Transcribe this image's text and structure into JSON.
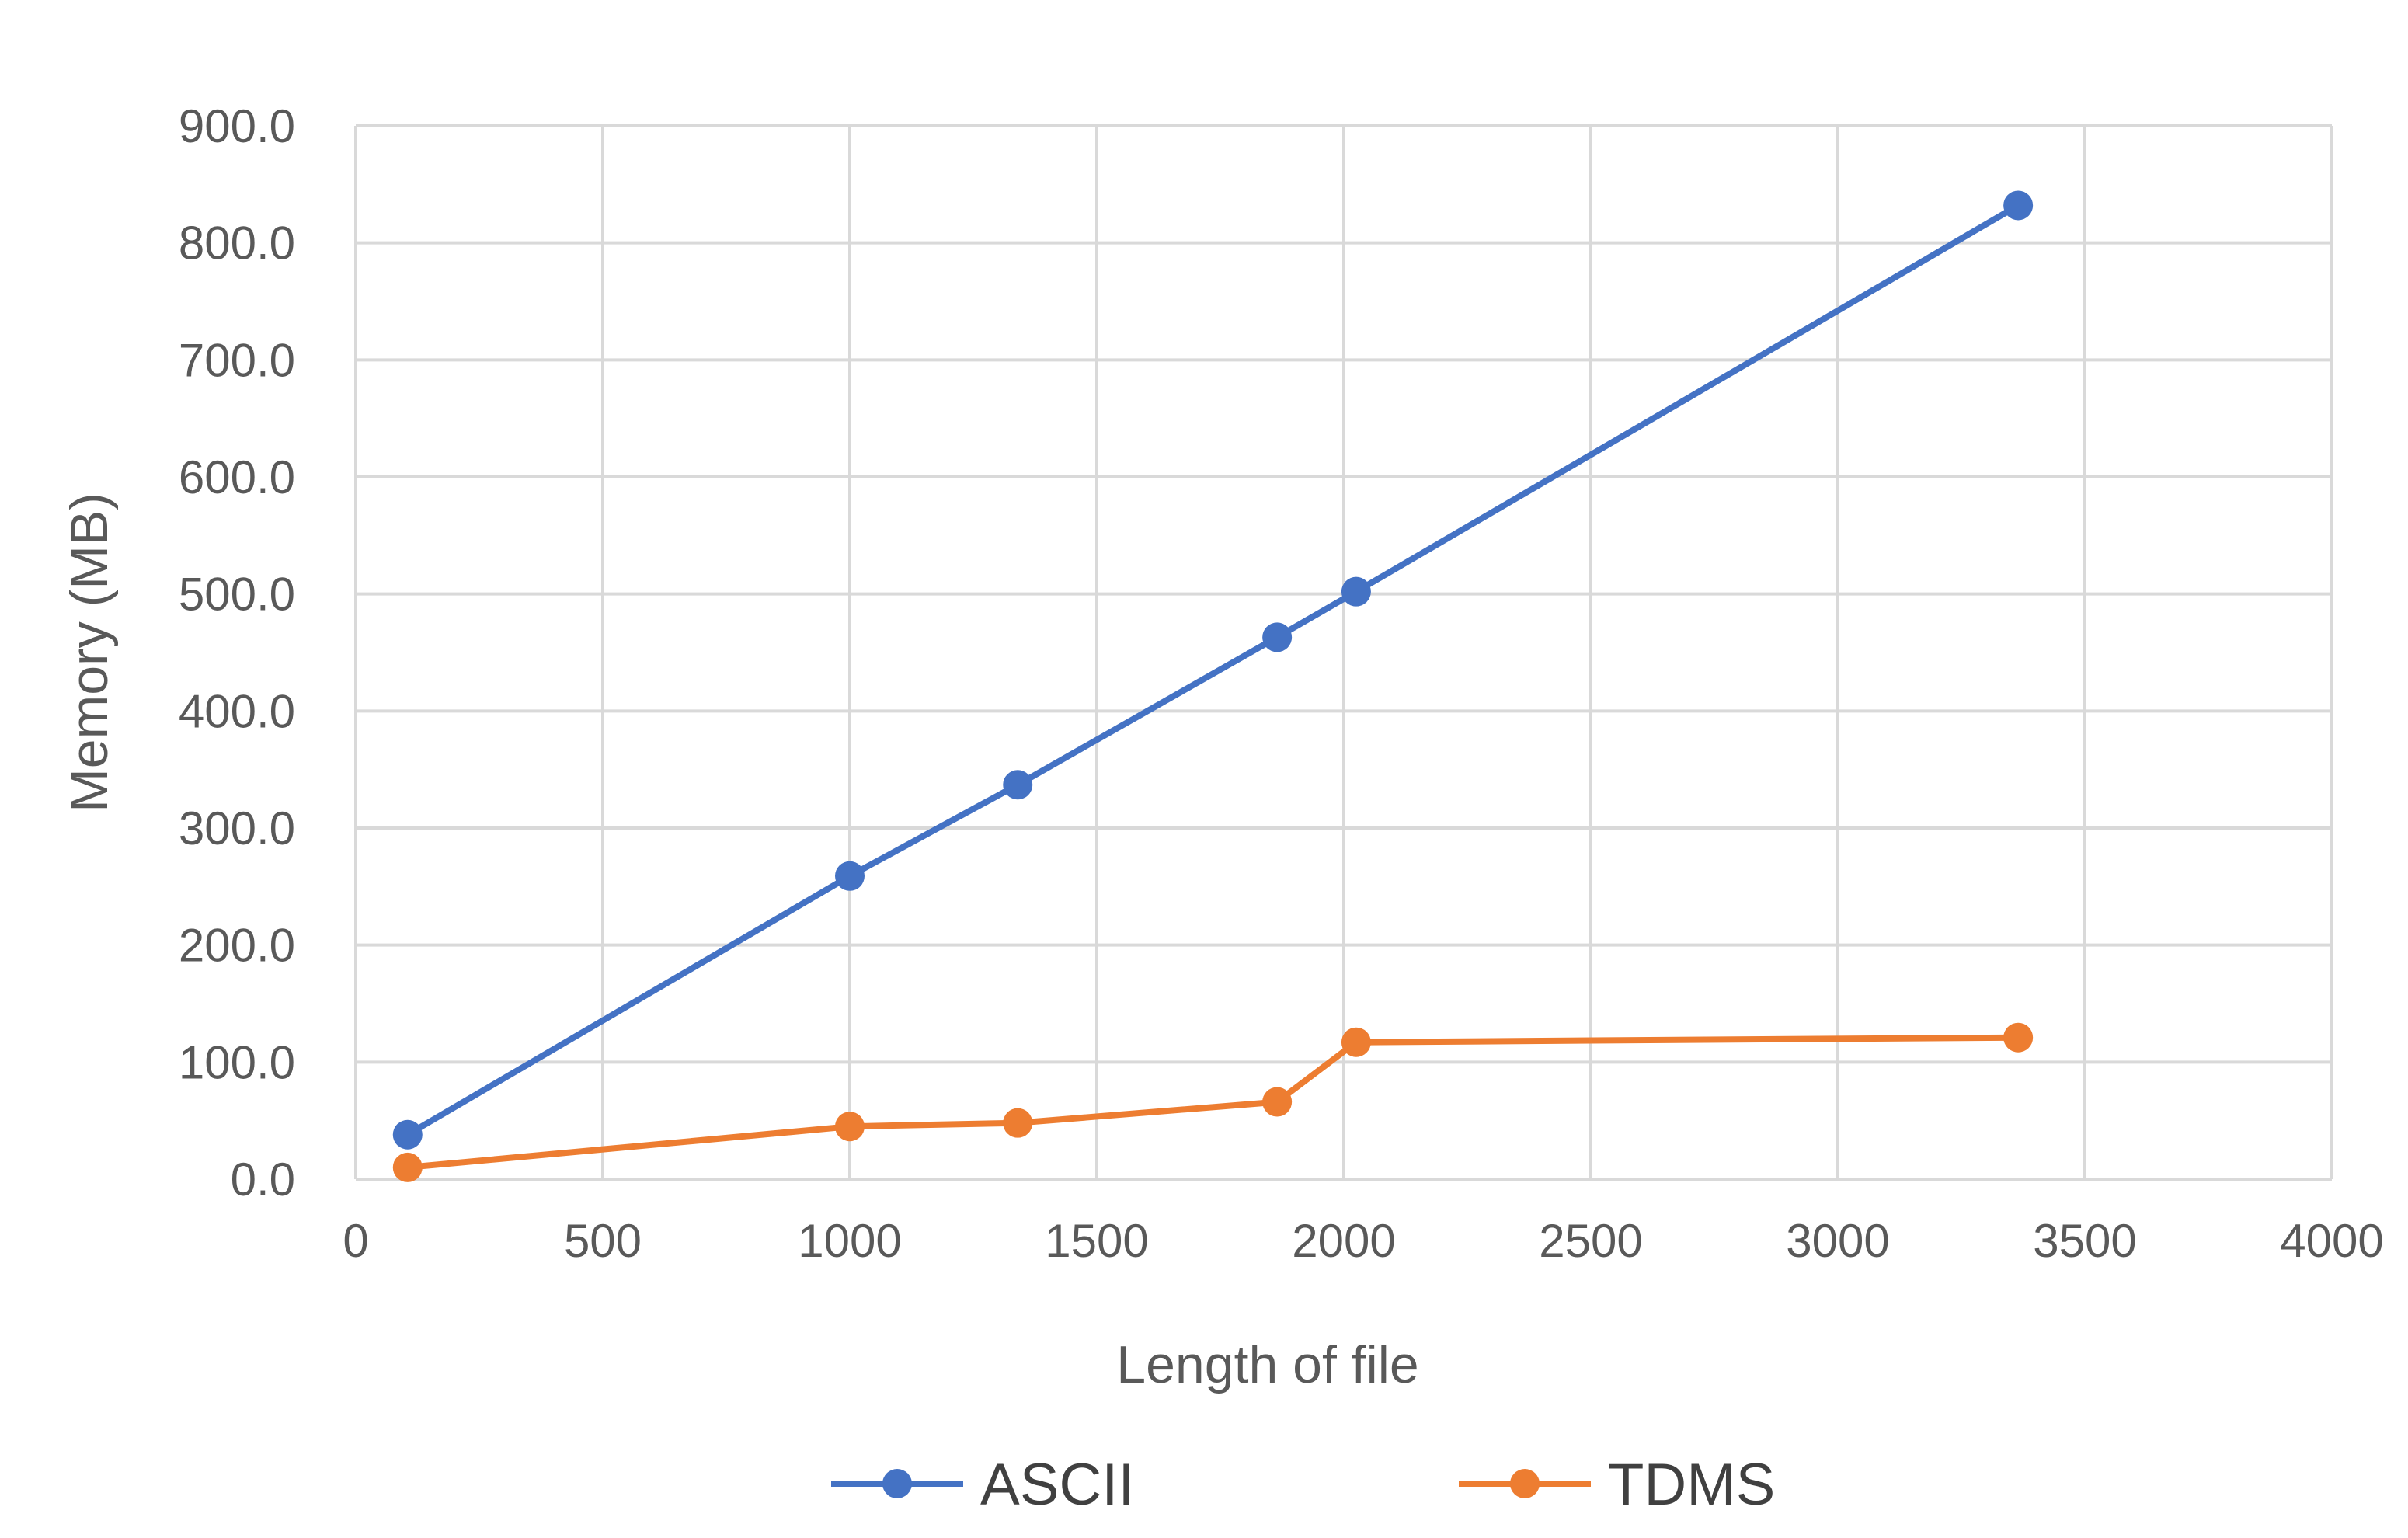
{
  "chart_data": {
    "type": "line",
    "title": "",
    "xlabel": "Length of file",
    "ylabel": "Memory (MB)",
    "xlim": [
      0,
      4000
    ],
    "ylim": [
      0,
      900
    ],
    "x_ticks": [
      "0",
      "500",
      "1000",
      "1500",
      "2000",
      "2500",
      "3000",
      "3500",
      "4000"
    ],
    "x_tick_values": [
      0,
      500,
      1000,
      1500,
      2000,
      2500,
      3000,
      3500,
      4000
    ],
    "y_ticks": [
      "0.0",
      "100.0",
      "200.0",
      "300.0",
      "400.0",
      "500.0",
      "600.0",
      "700.0",
      "800.0",
      "900.0"
    ],
    "y_tick_values": [
      0,
      100,
      200,
      300,
      400,
      500,
      600,
      700,
      800,
      900
    ],
    "grid": true,
    "legend_position": "bottom",
    "series": [
      {
        "name": "ASCII",
        "color": "#4472c4",
        "x": [
          105,
          1000,
          1340,
          1865,
          2025,
          3365
        ],
        "y": [
          38,
          259,
          337,
          463,
          502,
          832
        ]
      },
      {
        "name": "TDMS",
        "color": "#ed7d31",
        "x": [
          105,
          1000,
          1340,
          1865,
          2025,
          3365
        ],
        "y": [
          10,
          45,
          48,
          66,
          117,
          121
        ]
      }
    ]
  }
}
